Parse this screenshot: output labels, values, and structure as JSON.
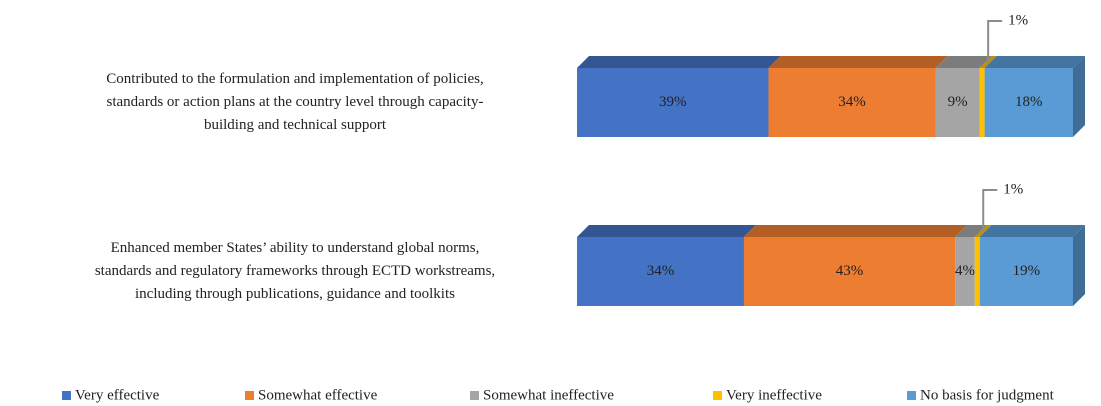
{
  "chart_data": {
    "type": "stacked-bar-3d",
    "categories": [
      [
        "Contributed to the formulation and implementation of policies,",
        "standards or action plans at the country level through capacity-",
        "building and technical support"
      ],
      [
        "Enhanced member States’ ability to understand global norms,",
        "standards and regulatory frameworks through ECTD workstreams,",
        "including through publications, guidance and toolkits"
      ]
    ],
    "series": [
      {
        "name": "Very effective",
        "color": "#4472c4",
        "values": [
          39,
          34
        ],
        "value_labels": [
          "39%",
          "34%"
        ]
      },
      {
        "name": "Somewhat effective",
        "color": "#ed7d31",
        "values": [
          34,
          43
        ],
        "value_labels": [
          "34%",
          "43%"
        ]
      },
      {
        "name": "Somewhat ineffective",
        "color": "#a5a5a5",
        "values": [
          9,
          4
        ],
        "value_labels": [
          "9%",
          "4%"
        ]
      },
      {
        "name": "Very ineffective",
        "color": "#ffc000",
        "values": [
          1,
          1
        ],
        "value_labels": [
          "1%",
          "1%"
        ]
      },
      {
        "name": "No basis for judgment",
        "color": "#5b9bd5",
        "values": [
          18,
          19
        ],
        "value_labels": [
          "18%",
          "19%"
        ]
      }
    ],
    "legend": "bottom"
  }
}
